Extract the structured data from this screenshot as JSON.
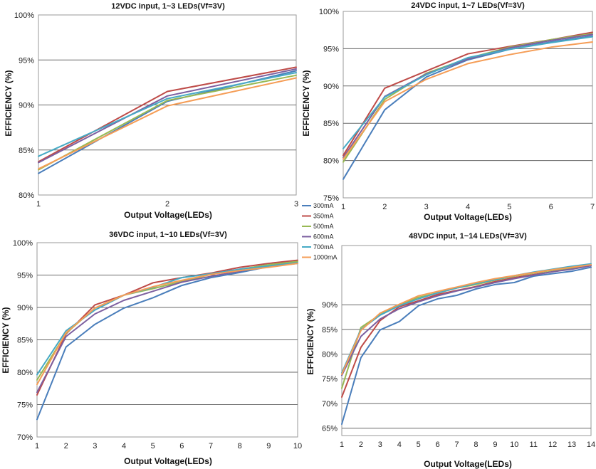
{
  "legend": {
    "items": [
      {
        "label": "300mA",
        "color": "#4A7EBB"
      },
      {
        "label": "350mA",
        "color": "#BE4B48"
      },
      {
        "label": "500mA",
        "color": "#98B954"
      },
      {
        "label": "600mA",
        "color": "#7D60A0"
      },
      {
        "label": "700mA",
        "color": "#46AAC5"
      },
      {
        "label": "1000mA",
        "color": "#F59D56"
      }
    ]
  },
  "chart_data": [
    {
      "type": "line",
      "title": "12VDC input, 1~3 LEDs(Vf=3V)",
      "xlabel": "Output Voltage(LEDs)",
      "ylabel": "EFFICIENCY (%)",
      "x": [
        1,
        2,
        3
      ],
      "xticks": [
        "1",
        "2",
        "3"
      ],
      "yticks": [
        80,
        85,
        90,
        95,
        100
      ],
      "ytick_labels": [
        "80%",
        "85%",
        "90%",
        "95%",
        "100%"
      ],
      "ylim": [
        80,
        100
      ],
      "grid": true,
      "series": [
        {
          "name": "300mA",
          "values": [
            82.4,
            90.4,
            93.8
          ]
        },
        {
          "name": "350mA",
          "values": [
            83.7,
            91.5,
            94.2
          ]
        },
        {
          "name": "500mA",
          "values": [
            82.8,
            90.5,
            93.3
          ]
        },
        {
          "name": "600mA",
          "values": [
            83.6,
            91.0,
            94.0
          ]
        },
        {
          "name": "700mA",
          "values": [
            84.3,
            90.7,
            93.6
          ]
        },
        {
          "name": "1000mA",
          "values": [
            82.9,
            89.9,
            93.0
          ]
        }
      ]
    },
    {
      "type": "line",
      "title": "24VDC input, 1~7 LEDs(Vf=3V)",
      "xlabel": "Output Voltage(LEDs)",
      "ylabel": "EFFICIENCY (%)",
      "x": [
        1,
        2,
        3,
        4,
        5,
        6,
        7
      ],
      "xticks": [
        "1",
        "2",
        "3",
        "4",
        "5",
        "6",
        "7"
      ],
      "yticks": [
        75,
        80,
        85,
        90,
        95,
        100
      ],
      "ytick_labels": [
        "75%",
        "80%",
        "85%",
        "90%",
        "95%",
        "100%"
      ],
      "ylim": [
        75,
        100
      ],
      "grid": true,
      "series": [
        {
          "name": "300mA",
          "values": [
            77.5,
            86.8,
            91.2,
            93.5,
            94.9,
            95.9,
            96.7
          ]
        },
        {
          "name": "350mA",
          "values": [
            80.7,
            89.7,
            92.0,
            94.3,
            95.3,
            96.2,
            97.2
          ]
        },
        {
          "name": "500mA",
          "values": [
            79.8,
            88.2,
            91.7,
            93.7,
            95.2,
            96.2,
            97.0
          ]
        },
        {
          "name": "600mA",
          "values": [
            80.4,
            88.6,
            91.6,
            93.6,
            95.1,
            96.1,
            96.9
          ]
        },
        {
          "name": "700mA",
          "values": [
            81.6,
            88.5,
            91.5,
            93.8,
            94.9,
            95.8,
            96.6
          ]
        },
        {
          "name": "1000mA",
          "values": [
            80.2,
            87.9,
            90.9,
            93.0,
            94.2,
            95.2,
            95.9
          ]
        }
      ]
    },
    {
      "type": "line",
      "title": "36VDC input, 1~10 LEDs(Vf=3V)",
      "xlabel": "Output Voltage(LEDs)",
      "ylabel": "EFFICIENCY (%)",
      "x": [
        1,
        2,
        3,
        4,
        5,
        6,
        7,
        8,
        9,
        10
      ],
      "xticks": [
        "1",
        "2",
        "3",
        "4",
        "5",
        "6",
        "7",
        "8",
        "9",
        "10"
      ],
      "yticks": [
        70,
        75,
        80,
        85,
        90,
        95,
        100
      ],
      "ytick_labels": [
        "70%",
        "75%",
        "80%",
        "85%",
        "90%",
        "95%",
        "100%"
      ],
      "ylim": [
        70,
        100
      ],
      "grid": true,
      "series": [
        {
          "name": "300mA",
          "values": [
            72.7,
            83.9,
            87.4,
            89.9,
            91.5,
            93.4,
            94.6,
            95.4,
            96.3,
            96.8
          ]
        },
        {
          "name": "350mA",
          "values": [
            76.5,
            85.9,
            90.4,
            91.9,
            93.8,
            94.6,
            95.3,
            96.2,
            96.8,
            97.3
          ]
        },
        {
          "name": "500mA",
          "values": [
            78.8,
            86.0,
            89.9,
            91.9,
            92.9,
            94.0,
            95.1,
            95.9,
            96.6,
            97.1
          ]
        },
        {
          "name": "600mA",
          "values": [
            76.9,
            85.5,
            89.0,
            91.1,
            92.5,
            93.9,
            94.8,
            95.6,
            96.4,
            96.9
          ]
        },
        {
          "name": "700mA",
          "values": [
            79.6,
            86.4,
            89.6,
            91.9,
            93.1,
            94.6,
            95.2,
            95.9,
            96.4,
            96.9
          ]
        },
        {
          "name": "1000mA",
          "values": [
            78.1,
            86.1,
            89.9,
            91.9,
            93.2,
            94.2,
            95.1,
            95.7,
            96.2,
            96.8
          ]
        }
      ]
    },
    {
      "type": "line",
      "title": "48VDC input, 1~14 LEDs(Vf=3V)",
      "xlabel": "Output Voltage(LEDs)",
      "ylabel": "EFFICIENCY (%)",
      "x": [
        1,
        2,
        3,
        4,
        5,
        6,
        7,
        8,
        9,
        10,
        11,
        12,
        13,
        14
      ],
      "xticks": [
        "1",
        "2",
        "3",
        "4",
        "5",
        "6",
        "7",
        "8",
        "9",
        "10",
        "11",
        "12",
        "13",
        "14"
      ],
      "yticks": [
        65,
        70,
        75,
        80,
        85,
        90
      ],
      "ytick_labels": [
        "65%",
        "70%",
        "75%",
        "80%",
        "85%",
        "90%"
      ],
      "ylim": [
        63.5,
        102
      ],
      "grid": true,
      "series": [
        {
          "name": "300mA",
          "values": [
            65.8,
            79.3,
            84.9,
            86.6,
            89.8,
            91.2,
            91.9,
            93.2,
            94.1,
            94.5,
            95.8,
            96.3,
            96.8,
            97.6
          ]
        },
        {
          "name": "350mA",
          "values": [
            71.3,
            81.4,
            86.8,
            89.6,
            90.8,
            92.1,
            92.9,
            93.7,
            94.7,
            95.5,
            96.1,
            96.7,
            97.3,
            98.0
          ]
        },
        {
          "name": "500mA",
          "values": [
            73.1,
            85.4,
            88.0,
            90.0,
            91.5,
            92.4,
            93.4,
            94.1,
            95.0,
            95.8,
            96.4,
            97.0,
            97.5,
            98.1
          ]
        },
        {
          "name": "600mA",
          "values": [
            75.7,
            83.6,
            87.1,
            89.2,
            90.6,
            91.8,
            92.8,
            93.6,
            94.5,
            95.3,
            96.0,
            96.7,
            97.2,
            97.9
          ]
        },
        {
          "name": "700mA",
          "values": [
            76.2,
            85.0,
            87.9,
            89.8,
            91.2,
            92.4,
            93.4,
            94.3,
            95.1,
            95.9,
            96.6,
            97.2,
            97.8,
            98.3
          ]
        },
        {
          "name": "1000mA",
          "values": [
            75.9,
            84.8,
            88.3,
            90.1,
            91.8,
            92.7,
            93.6,
            94.5,
            95.3,
            95.9,
            96.5,
            97.1,
            97.6,
            98.1
          ]
        }
      ]
    }
  ]
}
